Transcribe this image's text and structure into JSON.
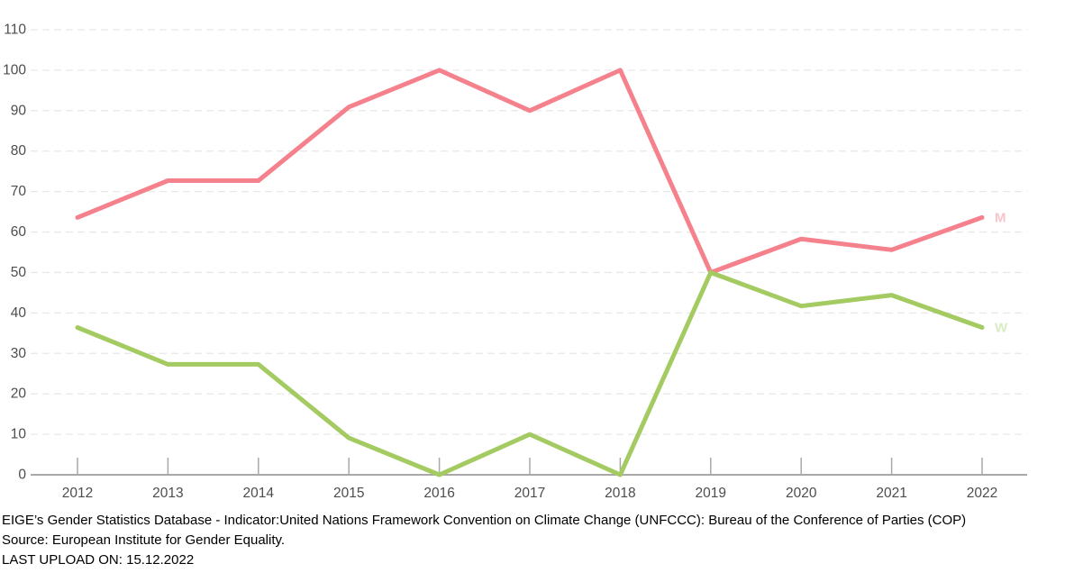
{
  "chart_data": {
    "type": "line",
    "title": "",
    "xlabel": "",
    "ylabel": "",
    "categories": [
      "2012",
      "2013",
      "2014",
      "2015",
      "2016",
      "2017",
      "2018",
      "2019",
      "2020",
      "2021",
      "2022"
    ],
    "series": [
      {
        "name": "M",
        "end_label": "M",
        "color": "#f5818d",
        "label_color": "#f9c3cb",
        "values": [
          63.6,
          72.7,
          72.7,
          90.9,
          100,
          90,
          100,
          50,
          58.3,
          55.6,
          63.6
        ]
      },
      {
        "name": "W",
        "end_label": "W",
        "color": "#a4ca62",
        "label_color": "#daecc3",
        "values": [
          36.4,
          27.3,
          27.3,
          9.1,
          0,
          10,
          0,
          50,
          41.7,
          44.4,
          36.4
        ]
      }
    ],
    "ylim": [
      0,
      110
    ],
    "y_ticks": [
      0,
      10,
      20,
      30,
      40,
      50,
      60,
      70,
      80,
      90,
      100,
      110
    ],
    "grid": "horizontal-dashed",
    "legend_position": "line-end-labels"
  },
  "colors": {
    "background": "#ffffff",
    "grid_line": "#e8e8e8",
    "axis_line": "#a8a8a8",
    "tick_mark": "#a8a8a8",
    "axis_text": "#4d4d4f",
    "footer_text": "#000000"
  },
  "footer": {
    "line1": "EIGE’s Gender Statistics Database - Indicator:United Nations Framework Convention on Climate Change (UNFCCC): Bureau of the Conference of Parties (COP)",
    "line2": "Source: European Institute for Gender Equality.",
    "line3": "LAST UPLOAD ON: 15.12.2022"
  }
}
